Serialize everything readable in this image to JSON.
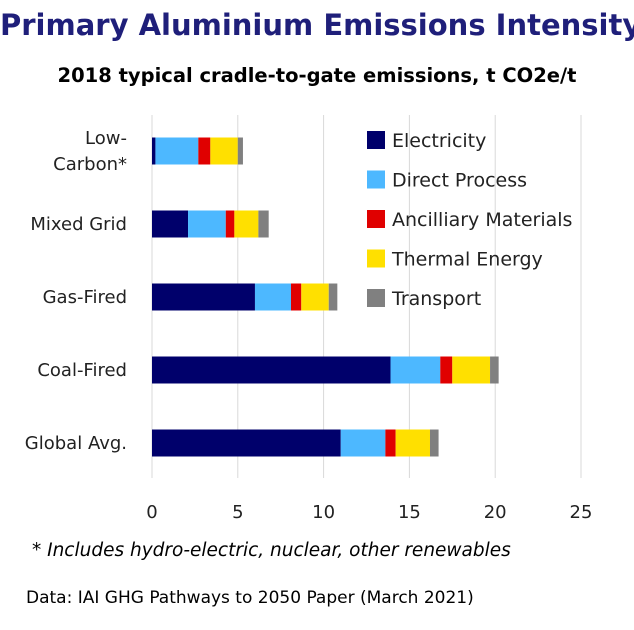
{
  "header": {
    "title": "Primary Aluminium Emissions Intensity",
    "subtitle": "2018 typical cradle-to-gate emissions, t CO2e/t"
  },
  "footnote": "* Includes hydro-electric, nuclear, other renewables",
  "source": "Data: IAI GHG Pathways to 2050 Paper (March 2021)",
  "chart_data": {
    "type": "bar",
    "orientation": "horizontal",
    "stacked": true,
    "categories": [
      "Low-Carbon*",
      "Mixed Grid",
      "Gas-Fired",
      "Coal-Fired",
      "Global Avg."
    ],
    "category_lines": [
      [
        "Low-",
        "Carbon*"
      ],
      [
        "Mixed Grid"
      ],
      [
        "Gas-Fired"
      ],
      [
        "Coal-Fired"
      ],
      [
        "Global Avg."
      ]
    ],
    "series": [
      {
        "name": "Electricity",
        "color": "#00006b",
        "values": [
          0.2,
          2.1,
          6.0,
          13.9,
          11.0
        ]
      },
      {
        "name": "Direct Process",
        "color": "#4db8ff",
        "values": [
          2.5,
          2.2,
          2.1,
          2.9,
          2.6
        ]
      },
      {
        "name": "Ancilliary Materials",
        "color": "#e00000",
        "values": [
          0.7,
          0.5,
          0.6,
          0.7,
          0.6
        ]
      },
      {
        "name": "Thermal Energy",
        "color": "#ffe000",
        "values": [
          1.6,
          1.4,
          1.6,
          2.2,
          2.0
        ]
      },
      {
        "name": "Transport",
        "color": "#808080",
        "values": [
          0.3,
          0.6,
          0.5,
          0.5,
          0.5
        ]
      }
    ],
    "xlim": [
      0,
      25
    ],
    "xticks": [
      0,
      5,
      10,
      15,
      20,
      25
    ],
    "grid": "vertical",
    "legend_position": "top-right"
  }
}
